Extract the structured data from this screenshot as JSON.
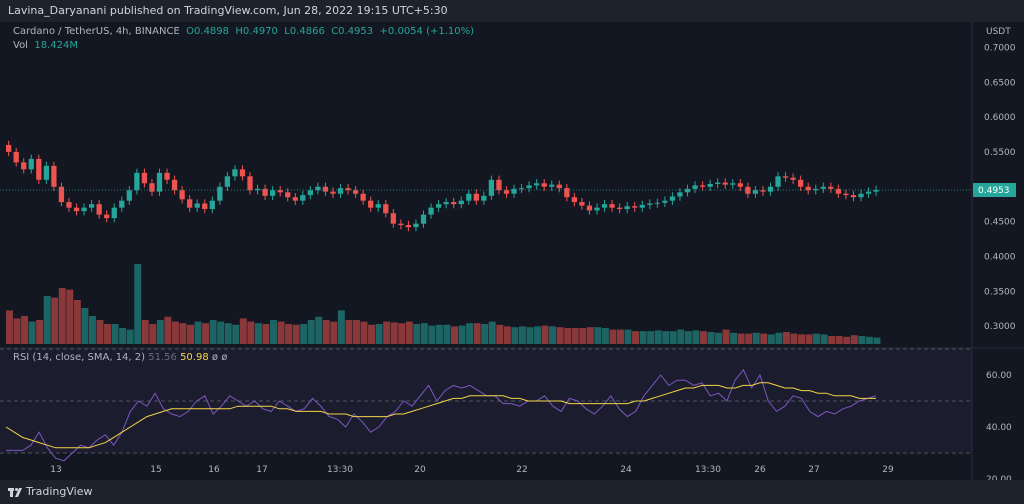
{
  "header": {
    "publisher": "Lavina_Daryanani published on TradingView.com, Jun 28, 2022 19:15 UTC+5:30"
  },
  "legend": {
    "symbol": "Cardano / TetherUS, 4h, BINANCE",
    "open": "O0.4898",
    "high": "H0.4970",
    "low": "L0.4866",
    "close": "C0.4953",
    "change": "+0.0054 (+1.10%)",
    "vol_label": "Vol",
    "vol_value": "18.424M"
  },
  "rsi_legend": {
    "label": "RSI (14, close, SMA, 14, 2)",
    "value1": "51.56",
    "value2": "50.98",
    "extra": "ø ø"
  },
  "footer": {
    "brand": "TradingView"
  },
  "colors": {
    "up": "#26a69a",
    "down": "#ef5350",
    "rsi": "#7e57c2",
    "rsi_ma": "#f5d547",
    "price_tag": "#26a69a"
  },
  "chart_data": [
    {
      "type": "candlestick",
      "title": "",
      "currency": "USDT",
      "ylim": [
        0.27,
        0.725
      ],
      "y_ticks": [
        "0.7000",
        "0.6500",
        "0.6000",
        "0.5500",
        "0.5000",
        "0.4500",
        "0.4000",
        "0.3500",
        "0.3000"
      ],
      "last_price": "0.4953",
      "x_ticks": [
        "13",
        "15",
        "16",
        "17",
        "13:30",
        "20",
        "22",
        "24",
        "13:30",
        "26",
        "27",
        "29"
      ],
      "ohlc_close": [
        0.55,
        0.535,
        0.525,
        0.54,
        0.51,
        0.53,
        0.5,
        0.478,
        0.47,
        0.465,
        0.47,
        0.475,
        0.46,
        0.455,
        0.47,
        0.48,
        0.495,
        0.52,
        0.505,
        0.493,
        0.52,
        0.51,
        0.495,
        0.482,
        0.47,
        0.476,
        0.468,
        0.48,
        0.5,
        0.515,
        0.525,
        0.515,
        0.495,
        0.497,
        0.487,
        0.495,
        0.492,
        0.485,
        0.48,
        0.488,
        0.495,
        0.5,
        0.493,
        0.49,
        0.498,
        0.495,
        0.49,
        0.48,
        0.47,
        0.475,
        0.462,
        0.447,
        0.445,
        0.442,
        0.447,
        0.46,
        0.47,
        0.475,
        0.478,
        0.475,
        0.48,
        0.49,
        0.48,
        0.487,
        0.51,
        0.495,
        0.49,
        0.497,
        0.498,
        0.502,
        0.505,
        0.5,
        0.503,
        0.498,
        0.485,
        0.478,
        0.473,
        0.466,
        0.47,
        0.475,
        0.47,
        0.468,
        0.472,
        0.47,
        0.474,
        0.476,
        0.477,
        0.48,
        0.486,
        0.492,
        0.497,
        0.502,
        0.5,
        0.504,
        0.506,
        0.503,
        0.505,
        0.5,
        0.49,
        0.495,
        0.493,
        0.5,
        0.515,
        0.513,
        0.51,
        0.5,
        0.495,
        0.497,
        0.5,
        0.497,
        0.49,
        0.488,
        0.485,
        0.49,
        0.493,
        0.4953
      ],
      "volume": {
        "values": [
          0.42,
          0.32,
          0.35,
          0.28,
          0.3,
          0.6,
          0.58,
          0.7,
          0.68,
          0.55,
          0.45,
          0.35,
          0.3,
          0.25,
          0.25,
          0.2,
          0.18,
          1.0,
          0.3,
          0.25,
          0.3,
          0.34,
          0.28,
          0.26,
          0.24,
          0.28,
          0.26,
          0.3,
          0.28,
          0.26,
          0.24,
          0.32,
          0.28,
          0.26,
          0.25,
          0.3,
          0.28,
          0.25,
          0.24,
          0.25,
          0.3,
          0.34,
          0.3,
          0.28,
          0.42,
          0.3,
          0.3,
          0.28,
          0.24,
          0.25,
          0.28,
          0.27,
          0.26,
          0.28,
          0.25,
          0.26,
          0.23,
          0.24,
          0.24,
          0.22,
          0.23,
          0.26,
          0.26,
          0.25,
          0.28,
          0.24,
          0.22,
          0.21,
          0.22,
          0.21,
          0.22,
          0.23,
          0.22,
          0.21,
          0.2,
          0.2,
          0.2,
          0.21,
          0.21,
          0.2,
          0.18,
          0.18,
          0.18,
          0.16,
          0.16,
          0.16,
          0.17,
          0.16,
          0.16,
          0.18,
          0.16,
          0.17,
          0.16,
          0.15,
          0.14,
          0.18,
          0.14,
          0.13,
          0.13,
          0.14,
          0.13,
          0.12,
          0.14,
          0.15,
          0.13,
          0.12,
          0.12,
          0.13,
          0.12,
          0.1,
          0.1,
          0.09,
          0.11,
          0.1,
          0.09,
          0.08
        ],
        "max": "0.45 scale"
      }
    },
    {
      "type": "line",
      "title": "RSI (14, close, SMA, 14, 2)",
      "ylim": [
        20,
        70
      ],
      "y_ticks": [
        60,
        40,
        20
      ],
      "levels": [
        70,
        50,
        30
      ],
      "series": [
        {
          "name": "RSI",
          "values": [
            31,
            31,
            31,
            33,
            38,
            32,
            28,
            27,
            30,
            33,
            32,
            35,
            37,
            33,
            38,
            46,
            50,
            48,
            53,
            47,
            45,
            44,
            46,
            50,
            52,
            45,
            48,
            52,
            50,
            48,
            50,
            47,
            46,
            50,
            48,
            46,
            47,
            51,
            48,
            44,
            43,
            40,
            45,
            42,
            38,
            40,
            44,
            46,
            50,
            48,
            52,
            56,
            50,
            54,
            56,
            55,
            56,
            54,
            52,
            52,
            49,
            49,
            48,
            50,
            50,
            52,
            48,
            46,
            51,
            50,
            47,
            45,
            48,
            52,
            47,
            44,
            46,
            52,
            56,
            60,
            56,
            58,
            58,
            56,
            57,
            52,
            53,
            50,
            58,
            62,
            55,
            60,
            50,
            46,
            48,
            52,
            51,
            46,
            44,
            46,
            45,
            47,
            48,
            50,
            51,
            52
          ]
        },
        {
          "name": "RSI MA",
          "values": [
            40,
            38,
            36,
            35,
            34,
            33,
            32,
            32,
            32,
            32,
            32,
            33,
            34,
            36,
            38,
            40,
            42,
            44,
            45,
            46,
            47,
            47,
            47,
            47,
            47,
            47,
            47,
            47,
            48,
            48,
            48,
            48,
            48,
            47,
            47,
            46,
            46,
            46,
            46,
            45,
            45,
            45,
            44,
            44,
            44,
            44,
            44,
            45,
            45,
            46,
            47,
            48,
            49,
            50,
            51,
            51,
            52,
            52,
            52,
            52,
            52,
            51,
            51,
            50,
            50,
            50,
            50,
            50,
            49,
            49,
            49,
            49,
            49,
            49,
            49,
            49,
            50,
            50,
            51,
            52,
            53,
            54,
            55,
            55,
            56,
            56,
            56,
            55,
            55,
            56,
            56,
            57,
            57,
            56,
            55,
            55,
            54,
            54,
            53,
            53,
            52,
            52,
            52,
            51,
            51,
            51
          ]
        }
      ]
    }
  ]
}
